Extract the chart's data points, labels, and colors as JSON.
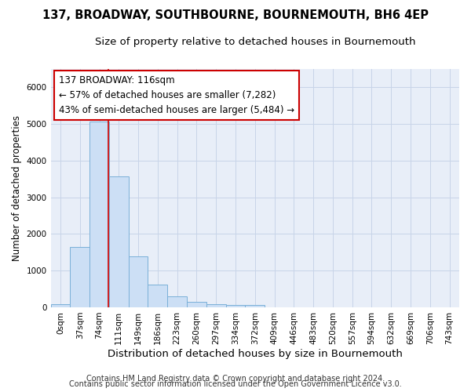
{
  "title": "137, BROADWAY, SOUTHBOURNE, BOURNEMOUTH, BH6 4EP",
  "subtitle": "Size of property relative to detached houses in Bournemouth",
  "xlabel": "Distribution of detached houses by size in Bournemouth",
  "ylabel": "Number of detached properties",
  "footer_line1": "Contains HM Land Registry data © Crown copyright and database right 2024.",
  "footer_line2": "Contains public sector information licensed under the Open Government Licence v3.0.",
  "bin_labels": [
    "0sqm",
    "37sqm",
    "74sqm",
    "111sqm",
    "149sqm",
    "186sqm",
    "223sqm",
    "260sqm",
    "297sqm",
    "334sqm",
    "372sqm",
    "409sqm",
    "446sqm",
    "483sqm",
    "520sqm",
    "557sqm",
    "594sqm",
    "632sqm",
    "669sqm",
    "706sqm",
    "743sqm"
  ],
  "bar_values": [
    75,
    1650,
    5060,
    3580,
    1400,
    615,
    290,
    140,
    85,
    55,
    55,
    0,
    0,
    0,
    0,
    0,
    0,
    0,
    0,
    0,
    0
  ],
  "bar_color": "#ccdff5",
  "bar_edge_color": "#7ab0d8",
  "grid_color": "#c8d4e8",
  "background_color": "#e8eef8",
  "annotation_box_text_line1": "137 BROADWAY: 116sqm",
  "annotation_box_text_line2": "← 57% of detached houses are smaller (7,282)",
  "annotation_box_text_line3": "43% of semi-detached houses are larger (5,484) →",
  "annotation_box_color": "white",
  "annotation_box_edge_color": "#cc0000",
  "vline_color": "#cc0000",
  "vline_x_index": 2.47,
  "ylim": [
    0,
    6500
  ],
  "title_fontsize": 10.5,
  "subtitle_fontsize": 9.5,
  "xlabel_fontsize": 9.5,
  "ylabel_fontsize": 8.5,
  "tick_fontsize": 7.5,
  "annotation_fontsize": 8.5,
  "footer_fontsize": 7.0
}
